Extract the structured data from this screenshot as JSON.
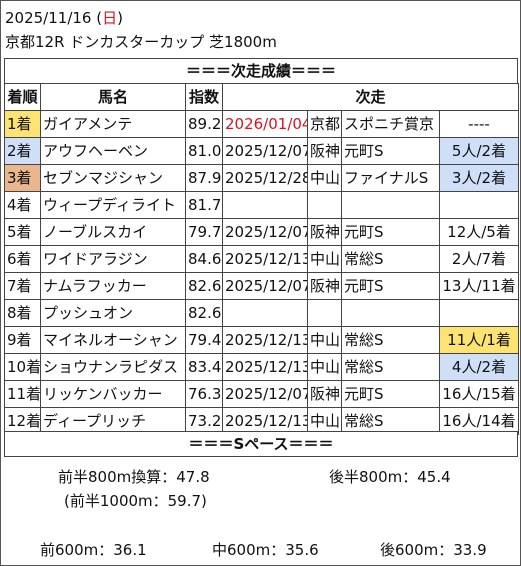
{
  "header": {
    "date_prefix": "2025/11/16 (",
    "weekday": "日",
    "date_suffix": ")",
    "race": "京都12R ドンカスターカップ 芝1800m"
  },
  "next_results_banner": "＝＝＝次走成績＝＝＝",
  "columns": {
    "rank": "着順",
    "name": "馬名",
    "index": "指数",
    "next": "次走"
  },
  "rows": [
    {
      "rank": "1着",
      "name": "ガイアメンテ",
      "index": "89.2",
      "date": "2026/01/04",
      "place": "京都",
      "race": "スポニチ賞京",
      "finish": "----"
    },
    {
      "rank": "2着",
      "name": "アウフヘーベン",
      "index": "81.0",
      "date": "2025/12/07",
      "place": "阪神",
      "race": "元町S",
      "finish": "5人/2着"
    },
    {
      "rank": "3着",
      "name": "セブンマジシャン",
      "index": "87.9",
      "date": "2025/12/28",
      "place": "中山",
      "race": "ファイナルS",
      "finish": "3人/2着"
    },
    {
      "rank": "4着",
      "name": "ウィープディライト",
      "index": "81.7",
      "date": "",
      "place": "",
      "race": "",
      "finish": ""
    },
    {
      "rank": "5着",
      "name": "ノーブルスカイ",
      "index": "79.7",
      "date": "2025/12/07",
      "place": "阪神",
      "race": "元町S",
      "finish": "12人/5着"
    },
    {
      "rank": "6着",
      "name": "ワイドアラジン",
      "index": "84.6",
      "date": "2025/12/13",
      "place": "中山",
      "race": "常総S",
      "finish": "2人/7着"
    },
    {
      "rank": "7着",
      "name": "ナムラフッカー",
      "index": "82.6",
      "date": "2025/12/07",
      "place": "阪神",
      "race": "元町S",
      "finish": "13人/11着"
    },
    {
      "rank": "8着",
      "name": "プッシュオン",
      "index": "82.6",
      "date": "",
      "place": "",
      "race": "",
      "finish": ""
    },
    {
      "rank": "9着",
      "name": "マイネルオーシャン",
      "index": "79.4",
      "date": "2025/12/13",
      "place": "中山",
      "race": "常総S",
      "finish": "11人/1着"
    },
    {
      "rank": "10着",
      "name": "ショウナンラピダス",
      "index": "83.4",
      "date": "2025/12/13",
      "place": "中山",
      "race": "常総S",
      "finish": "4人/2着"
    },
    {
      "rank": "11着",
      "name": "リッケンバッカー",
      "index": "76.3",
      "date": "2025/12/07",
      "place": "阪神",
      "race": "元町S",
      "finish": "16人/15着"
    },
    {
      "rank": "12着",
      "name": "ディープリッチ",
      "index": "73.2",
      "date": "2025/12/13",
      "place": "中山",
      "race": "常総S",
      "finish": "16人/14着"
    }
  ],
  "highlight_colors": {
    "gold": "#fde372",
    "blue": "#cfdff8",
    "orange": "#eab78c",
    "red_text": "#d8141e"
  },
  "pace_banner": "＝＝＝Sペース＝＝＝",
  "pace": {
    "first800": "前半800m換算：47.8",
    "last800": "後半800m：45.4",
    "first1000": "(前半1000m：59.7)",
    "first600": "前600m：36.1",
    "mid600": "中600m：35.6",
    "last600": "後600m：33.9"
  }
}
